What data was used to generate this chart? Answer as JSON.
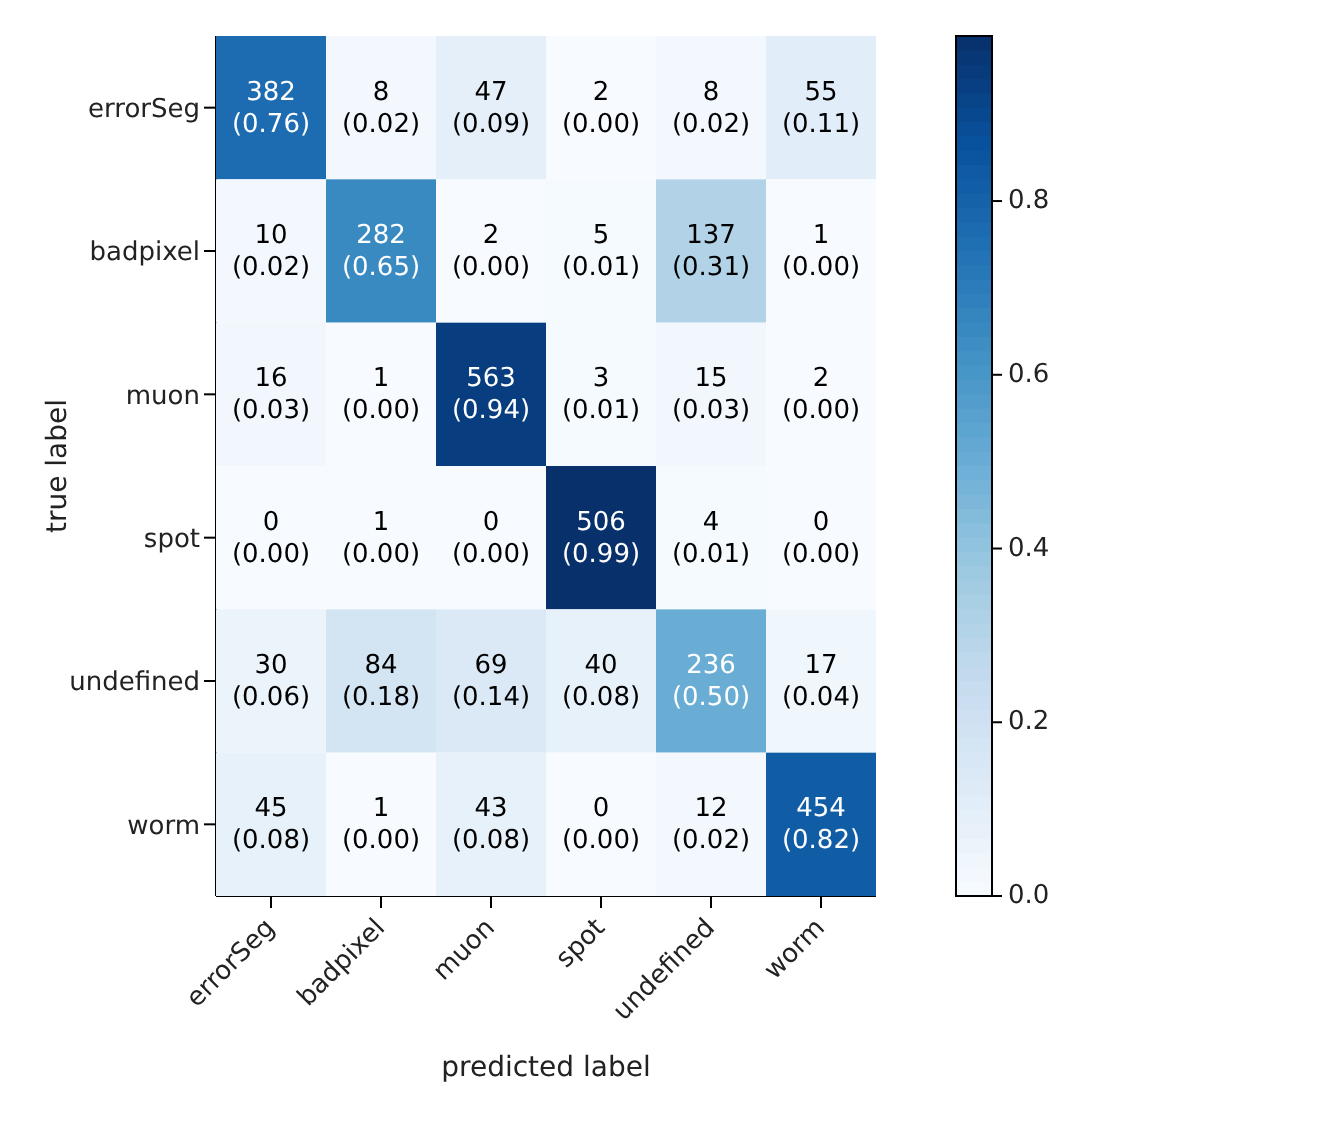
{
  "chart_data": {
    "type": "heatmap",
    "xlabel": "predicted label",
    "ylabel": "true label",
    "categories": [
      "errorSeg",
      "badpixel",
      "muon",
      "spot",
      "undefined",
      "worm"
    ],
    "y_categories": [
      "errorSeg",
      "badpixel",
      "muon",
      "spot",
      "undefined",
      "worm"
    ],
    "cells": [
      [
        0.76,
        0.02,
        0.09,
        0.0,
        0.02,
        0.11
      ],
      [
        0.02,
        0.65,
        0.0,
        0.01,
        0.31,
        0.0
      ],
      [
        0.03,
        0.0,
        0.94,
        0.01,
        0.03,
        0.0
      ],
      [
        0.0,
        0.0,
        0.0,
        0.99,
        0.01,
        0.0
      ],
      [
        0.06,
        0.18,
        0.14,
        0.08,
        0.5,
        0.04
      ],
      [
        0.08,
        0.0,
        0.08,
        0.0,
        0.02,
        0.82
      ]
    ],
    "cell_labels": [
      [
        "382\n(0.76)",
        "8\n(0.02)",
        "47\n(0.09)",
        "2\n(0.00)",
        "8\n(0.02)",
        "55\n(0.11)"
      ],
      [
        "10\n(0.02)",
        "282\n(0.65)",
        "2\n(0.00)",
        "5\n(0.01)",
        "137\n(0.31)",
        "1\n(0.00)"
      ],
      [
        "16\n(0.03)",
        "1\n(0.00)",
        "563\n(0.94)",
        "3\n(0.01)",
        "15\n(0.03)",
        "2\n(0.00)"
      ],
      [
        "0\n(0.00)",
        "1\n(0.00)",
        "0\n(0.00)",
        "506\n(0.99)",
        "4\n(0.01)",
        "0\n(0.00)"
      ],
      [
        "30\n(0.06)",
        "84\n(0.18)",
        "69\n(0.14)",
        "40\n(0.08)",
        "236\n(0.50)",
        "17\n(0.04)"
      ],
      [
        "45\n(0.08)",
        "1\n(0.00)",
        "43\n(0.08)",
        "0\n(0.00)",
        "12\n(0.02)",
        "454\n(0.82)"
      ]
    ],
    "clim": [
      0,
      0.99
    ],
    "cticks": [
      {
        "value": 0,
        "label": "0.0"
      },
      {
        "value": 0.2,
        "label": "0.2"
      },
      {
        "value": 0.4,
        "label": "0.4"
      },
      {
        "value": 0.6,
        "label": "0.6"
      },
      {
        "value": 0.8,
        "label": "0.8"
      }
    ]
  }
}
